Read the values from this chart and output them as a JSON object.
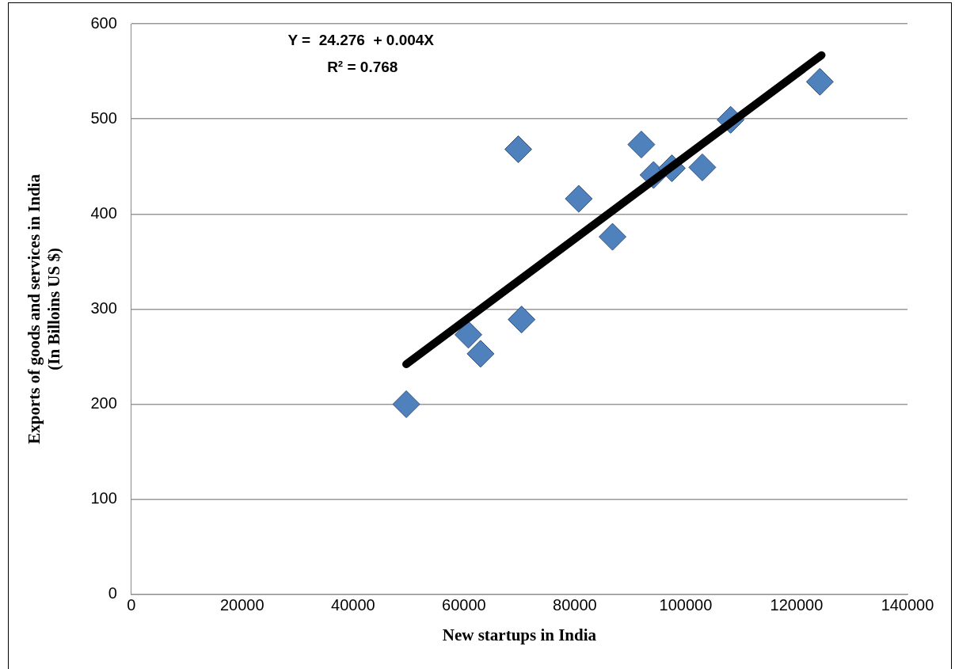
{
  "chart_data": {
    "type": "scatter",
    "xlabel": "New startups in India",
    "ylabel": "Exports of goods and services in India\n(In Billoins US $)",
    "xlim": [
      0,
      140000
    ],
    "xticks": [
      0,
      20000,
      40000,
      60000,
      80000,
      100000,
      120000,
      140000
    ],
    "ylim": [
      0,
      600
    ],
    "yticks": [
      0,
      100,
      200,
      300,
      400,
      500,
      600
    ],
    "grid": "y",
    "legend": false,
    "series": [
      {
        "marker": "diamond",
        "color": "#4f81bd",
        "x": [
          49600,
          60800,
          63000,
          69800,
          70400,
          80700,
          86800,
          92000,
          94200,
          97500,
          103000,
          108100,
          124200
        ],
        "values": [
          200,
          273,
          253,
          468,
          289,
          416,
          376,
          473,
          441,
          448,
          449,
          499,
          539
        ]
      },
      {
        "type": "line",
        "marker": "none",
        "color": "#000000",
        "x": [
          49600,
          124500
        ],
        "values": [
          242,
          567
        ]
      }
    ],
    "annotations": [
      "Y =  24.276  + 0.004X",
      "R² = 0.768"
    ]
  }
}
